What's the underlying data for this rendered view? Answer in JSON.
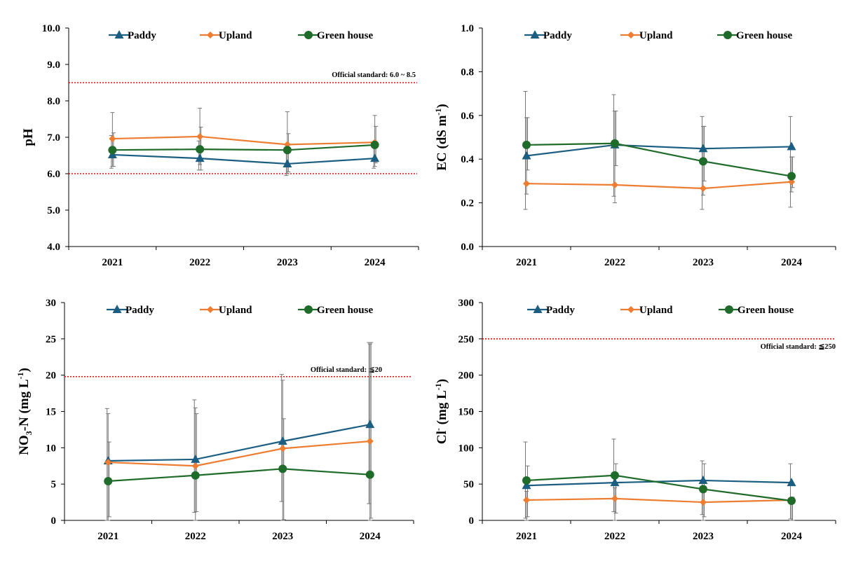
{
  "chart_data": [
    {
      "type": "line",
      "categories": [
        "2021",
        "2022",
        "2023",
        "2024"
      ],
      "ylabel": "pH",
      "ylim": [
        4.0,
        10.0
      ],
      "yticks": [
        "4.0",
        "5.0",
        "6.0",
        "7.0",
        "8.0",
        "9.0",
        "10.0"
      ],
      "reference_lines": [
        6.0,
        8.5
      ],
      "annotation": "Official standard: 6.0 ~ 8.5",
      "legend_position": "top",
      "series": [
        {
          "name": "Paddy",
          "color": "#1b5e82",
          "marker": "triangle",
          "values": [
            6.52,
            6.42,
            6.27,
            6.42
          ],
          "err_low": [
            6.15,
            6.1,
            5.95,
            6.15
          ],
          "err_high": [
            7.05,
            6.9,
            6.65,
            6.8
          ]
        },
        {
          "name": "Upland",
          "color": "#ed7d31",
          "marker": "diamond",
          "values": [
            6.96,
            7.02,
            6.8,
            6.86
          ],
          "err_low": [
            6.2,
            6.25,
            6.0,
            6.2
          ],
          "err_high": [
            7.68,
            7.8,
            7.7,
            7.6
          ]
        },
        {
          "name": "Green house",
          "color": "#1f6b2a",
          "marker": "circle",
          "values": [
            6.65,
            6.67,
            6.65,
            6.79
          ],
          "err_low": [
            6.2,
            6.1,
            6.05,
            6.3
          ],
          "err_high": [
            7.12,
            7.28,
            7.1,
            7.3
          ]
        }
      ]
    },
    {
      "type": "line",
      "categories": [
        "2021",
        "2022",
        "2023",
        "2024"
      ],
      "ylabel": "EC (dS m",
      "ylabel_sup": "-1",
      "ylabel_end": ")",
      "ylim": [
        0.0,
        1.0
      ],
      "yticks": [
        "0.0",
        "0.2",
        "0.4",
        "0.6",
        "0.8",
        "1.0"
      ],
      "reference_lines": [],
      "annotation": "",
      "legend_position": "top",
      "series": [
        {
          "name": "Paddy",
          "color": "#1b5e82",
          "marker": "triangle",
          "values": [
            0.415,
            0.465,
            0.448,
            0.457
          ],
          "err_low": [
            0.17,
            0.23,
            0.17,
            0.18
          ],
          "err_high": [
            0.71,
            0.695,
            0.595,
            0.595
          ]
        },
        {
          "name": "Upland",
          "color": "#ed7d31",
          "marker": "diamond",
          "values": [
            0.288,
            0.282,
            0.266,
            0.296
          ],
          "err_low": [
            0.24,
            0.2,
            0.235,
            0.25
          ],
          "err_high": [
            0.59,
            0.62,
            0.55,
            0.41
          ]
        },
        {
          "name": "Green house",
          "color": "#1f6b2a",
          "marker": "circle",
          "values": [
            0.465,
            0.472,
            0.39,
            0.322
          ],
          "err_low": [
            0.35,
            0.37,
            0.3,
            0.27
          ],
          "err_high": [
            0.59,
            0.62,
            0.55,
            0.41
          ]
        }
      ]
    },
    {
      "type": "line",
      "categories": [
        "2021",
        "2022",
        "2023",
        "2024"
      ],
      "ylabel": "NO",
      "ylabel_sub": "3",
      "ylabel_end": "-N (mg L",
      "ylabel_sup": "-1",
      "ylabel_end2": ")",
      "ylim": [
        0,
        30
      ],
      "yticks": [
        "0",
        "5",
        "10",
        "15",
        "20",
        "25",
        "30"
      ],
      "reference_lines": [
        19.8
      ],
      "annotation": "Official standard: ≦20",
      "legend_position": "top",
      "series": [
        {
          "name": "Paddy",
          "color": "#1b5e82",
          "marker": "triangle",
          "values": [
            8.2,
            8.4,
            10.9,
            13.2
          ],
          "err_low": [
            0.0,
            1.1,
            2.6,
            2.3
          ],
          "err_high": [
            15.4,
            16.6,
            20.1,
            24.5
          ]
        },
        {
          "name": "Upland",
          "color": "#ed7d31",
          "marker": "diamond",
          "values": [
            8.0,
            7.5,
            9.9,
            10.9
          ],
          "err_low": [
            0.0,
            0.0,
            0.0,
            0.0
          ],
          "err_high": [
            14.7,
            15.5,
            19.3,
            24.3
          ]
        },
        {
          "name": "Green house",
          "color": "#1f6b2a",
          "marker": "circle",
          "values": [
            5.4,
            6.2,
            7.1,
            6.3
          ],
          "err_low": [
            0.5,
            1.2,
            0.1,
            0.3
          ],
          "err_high": [
            10.8,
            14.7,
            14.0,
            24.5
          ]
        }
      ]
    },
    {
      "type": "line",
      "categories": [
        "2021",
        "2022",
        "2023",
        "2024"
      ],
      "ylabel": "Cl",
      "ylabel_sup": "-",
      "ylabel_end": " (mg L",
      "ylabel_sup2": "-1",
      "ylabel_end2": ")",
      "ylim": [
        0,
        300
      ],
      "yticks": [
        "0",
        "50",
        "100",
        "150",
        "200",
        "250",
        "300"
      ],
      "reference_lines": [
        250
      ],
      "annotation": "Official standard: ≦250",
      "legend_position": "top",
      "series": [
        {
          "name": "Paddy",
          "color": "#1b5e82",
          "marker": "triangle",
          "values": [
            48,
            52,
            55,
            52
          ],
          "err_low": [
            3,
            12,
            8,
            2
          ],
          "err_high": [
            108,
            112,
            82,
            78
          ]
        },
        {
          "name": "Upland",
          "color": "#ed7d31",
          "marker": "diamond",
          "values": [
            28,
            30,
            25,
            28
          ],
          "err_low": [
            0,
            0,
            0,
            0
          ],
          "err_high": [
            40,
            45,
            40,
            30
          ]
        },
        {
          "name": "Green house",
          "color": "#1f6b2a",
          "marker": "circle",
          "values": [
            55,
            62,
            43,
            27
          ],
          "err_low": [
            5,
            10,
            5,
            0
          ],
          "err_high": [
            75,
            78,
            78,
            32
          ]
        }
      ]
    }
  ]
}
